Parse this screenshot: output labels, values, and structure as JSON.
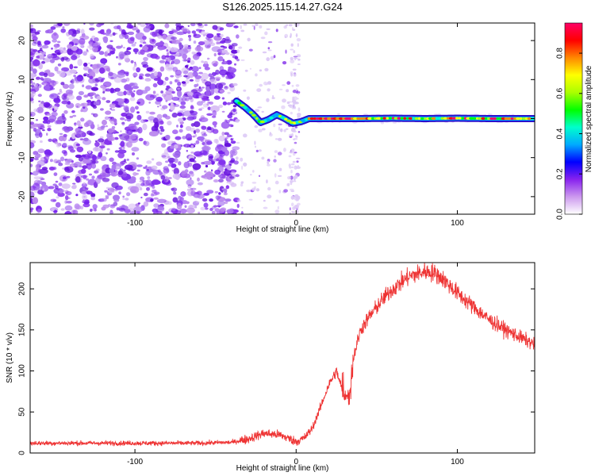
{
  "title": "S126.2025.115.14.27.G24",
  "chart_data": [
    {
      "type": "heatmap",
      "xlabel": "Height of straight line (km)",
      "ylabel": "Frequency (Hz)",
      "xlim": [
        -165,
        148
      ],
      "ylim": [
        -24.5,
        24.5
      ],
      "xticks": [
        -100,
        0,
        100
      ],
      "yticks": [
        -20,
        -10,
        0,
        10,
        20
      ],
      "grid": false,
      "noise_region_x": [
        -165,
        -37
      ],
      "sparse_region_x": [
        -37,
        0
      ],
      "signal_trace": {
        "x": [
          -37,
          -32,
          -27,
          -22,
          -17,
          -12,
          -7,
          -2,
          3,
          8,
          20,
          40,
          60,
          80,
          100,
          120,
          140,
          148
        ],
        "y": [
          4.5,
          3.0,
          1.2,
          -1.0,
          -0.2,
          1.0,
          0.0,
          -1.2,
          -0.8,
          0.0,
          0.0,
          0.0,
          0.1,
          0.0,
          0.1,
          0.0,
          0.0,
          0.0
        ]
      },
      "colorbar": {
        "label": "Normalized spectral amplitude",
        "range": [
          0.0,
          0.95
        ],
        "ticks": [
          "0.0",
          "0.2",
          "0.4",
          "0.6",
          "0.8"
        ],
        "tick_values": [
          0.0,
          0.2,
          0.4,
          0.6,
          0.8
        ],
        "colormap": [
          "#ffffff",
          "#cc99ee",
          "#8822ee",
          "#0000ff",
          "#00aaff",
          "#00ffcc",
          "#00ff00",
          "#aaff00",
          "#ffff00",
          "#ff8800",
          "#ff0000",
          "#ff0066"
        ]
      }
    },
    {
      "type": "line",
      "xlabel": "Height of straight line (km)",
      "ylabel": "SNR (10 * v/v)",
      "xlim": [
        -165,
        148
      ],
      "ylim": [
        0,
        232
      ],
      "xticks": [
        -100,
        0,
        100
      ],
      "yticks": [
        0,
        50,
        100,
        150,
        200
      ],
      "grid": false,
      "color": "#ee3333",
      "series": [
        {
          "x": [
            -165,
            -140,
            -120,
            -100,
            -80,
            -60,
            -40,
            -30,
            -20,
            -10,
            -5,
            0,
            5,
            10,
            15,
            20,
            25,
            30,
            33,
            36,
            40,
            45,
            50,
            55,
            60,
            70,
            80,
            85,
            90,
            100,
            110,
            120,
            130,
            140,
            148
          ],
          "values": [
            12,
            12,
            12,
            12,
            12,
            12,
            13,
            17,
            24,
            22,
            18,
            14,
            18,
            30,
            55,
            82,
            100,
            68,
            72,
            120,
            150,
            165,
            178,
            190,
            200,
            215,
            221,
            220,
            214,
            195,
            178,
            162,
            150,
            140,
            132
          ]
        }
      ]
    }
  ]
}
